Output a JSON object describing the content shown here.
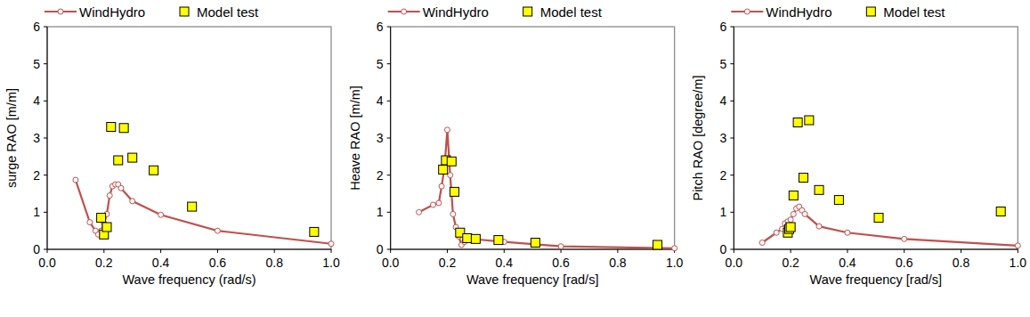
{
  "chart_data": [
    {
      "type": "line",
      "x_label": "Wave frequency (rad/s)",
      "y_label": "surge RAO [m/m]",
      "xlim": [
        0,
        1
      ],
      "xticks": [
        {
          "value": 0,
          "label": "0.0"
        },
        0.2,
        0.4,
        0.6,
        0.8,
        {
          "value": 1,
          "label": "1.0"
        }
      ],
      "ylim": [
        0,
        6
      ],
      "yticks": [
        0,
        1,
        2,
        3,
        4,
        5,
        6
      ],
      "grid": false,
      "legend": "top",
      "series": [
        {
          "name": "WindHydro",
          "type": "line",
          "color": "#c0504d",
          "marker": "circle",
          "line_style": "solid",
          "x": [
            0.1,
            0.15,
            0.17,
            0.18,
            0.19,
            0.2,
            0.21,
            0.22,
            0.23,
            0.24,
            0.25,
            0.26,
            0.3,
            0.4,
            0.6,
            1.0
          ],
          "values": [
            1.87,
            0.73,
            0.5,
            0.4,
            0.5,
            0.7,
            0.95,
            1.45,
            1.7,
            1.75,
            1.75,
            1.65,
            1.3,
            0.93,
            0.5,
            0.15
          ]
        },
        {
          "name": "Model test",
          "type": "scatter",
          "color": "#ffff00",
          "marker": "square",
          "x": [
            0.19,
            0.2,
            0.21,
            0.225,
            0.25,
            0.27,
            0.3,
            0.375,
            0.51,
            0.94
          ],
          "values": [
            0.85,
            0.4,
            0.6,
            3.3,
            2.4,
            3.27,
            2.47,
            2.13,
            1.15,
            0.47
          ]
        }
      ]
    },
    {
      "type": "line",
      "x_label": "Wave frequency [rad/s]",
      "y_label": "Heave RAO [m/m]",
      "xlim": [
        0,
        1
      ],
      "xticks": [
        {
          "value": 0,
          "label": "0.0"
        },
        0.2,
        0.4,
        0.6,
        0.8,
        {
          "value": 1,
          "label": "1.0"
        }
      ],
      "ylim": [
        0,
        6
      ],
      "yticks": [
        0,
        1,
        2,
        3,
        4,
        5,
        6
      ],
      "grid": false,
      "legend": "top",
      "series": [
        {
          "name": "WindHydro",
          "type": "line",
          "color": "#c0504d",
          "marker": "circle",
          "line_style": "solid",
          "x": [
            0.1,
            0.15,
            0.17,
            0.18,
            0.19,
            0.2,
            0.21,
            0.22,
            0.23,
            0.24,
            0.25,
            0.26,
            0.3,
            0.4,
            0.6,
            1.0
          ],
          "values": [
            1.0,
            1.2,
            1.25,
            1.7,
            2.2,
            3.22,
            2.0,
            0.95,
            0.6,
            0.35,
            0.12,
            0.2,
            0.27,
            0.2,
            0.08,
            0.03
          ]
        },
        {
          "name": "Model test",
          "type": "scatter",
          "color": "#ffff00",
          "marker": "square",
          "x": [
            0.185,
            0.195,
            0.215,
            0.225,
            0.245,
            0.27,
            0.3,
            0.38,
            0.51,
            0.94
          ],
          "values": [
            2.15,
            2.4,
            2.37,
            1.55,
            0.45,
            0.3,
            0.28,
            0.25,
            0.18,
            0.12
          ]
        }
      ]
    },
    {
      "type": "line",
      "x_label": "Wave frequency [rad/s]",
      "y_label": "Pitch  RAO [degree/m]",
      "xlim": [
        0,
        1
      ],
      "xticks": [
        {
          "value": 0,
          "label": "0.0"
        },
        0.2,
        0.4,
        0.6,
        0.8,
        {
          "value": 1,
          "label": "1.0"
        }
      ],
      "ylim": [
        0,
        6
      ],
      "yticks": [
        0,
        1,
        2,
        3,
        4,
        5,
        6
      ],
      "grid": false,
      "legend": "top",
      "series": [
        {
          "name": "WindHydro",
          "type": "line",
          "color": "#c0504d",
          "marker": "circle",
          "line_style": "solid",
          "x": [
            0.1,
            0.15,
            0.17,
            0.18,
            0.19,
            0.2,
            0.21,
            0.22,
            0.23,
            0.24,
            0.25,
            0.3,
            0.4,
            0.6,
            1.0
          ],
          "values": [
            0.18,
            0.45,
            0.55,
            0.7,
            0.75,
            0.8,
            0.95,
            1.1,
            1.15,
            1.05,
            0.95,
            0.62,
            0.45,
            0.28,
            0.1
          ]
        },
        {
          "name": "Model test",
          "type": "scatter",
          "color": "#ffff00",
          "marker": "square",
          "x": [
            0.19,
            0.195,
            0.2,
            0.21,
            0.225,
            0.245,
            0.265,
            0.3,
            0.37,
            0.51,
            0.94
          ],
          "values": [
            0.45,
            0.55,
            0.6,
            1.45,
            3.42,
            1.93,
            3.48,
            1.6,
            1.33,
            0.85,
            1.02
          ]
        }
      ]
    }
  ]
}
